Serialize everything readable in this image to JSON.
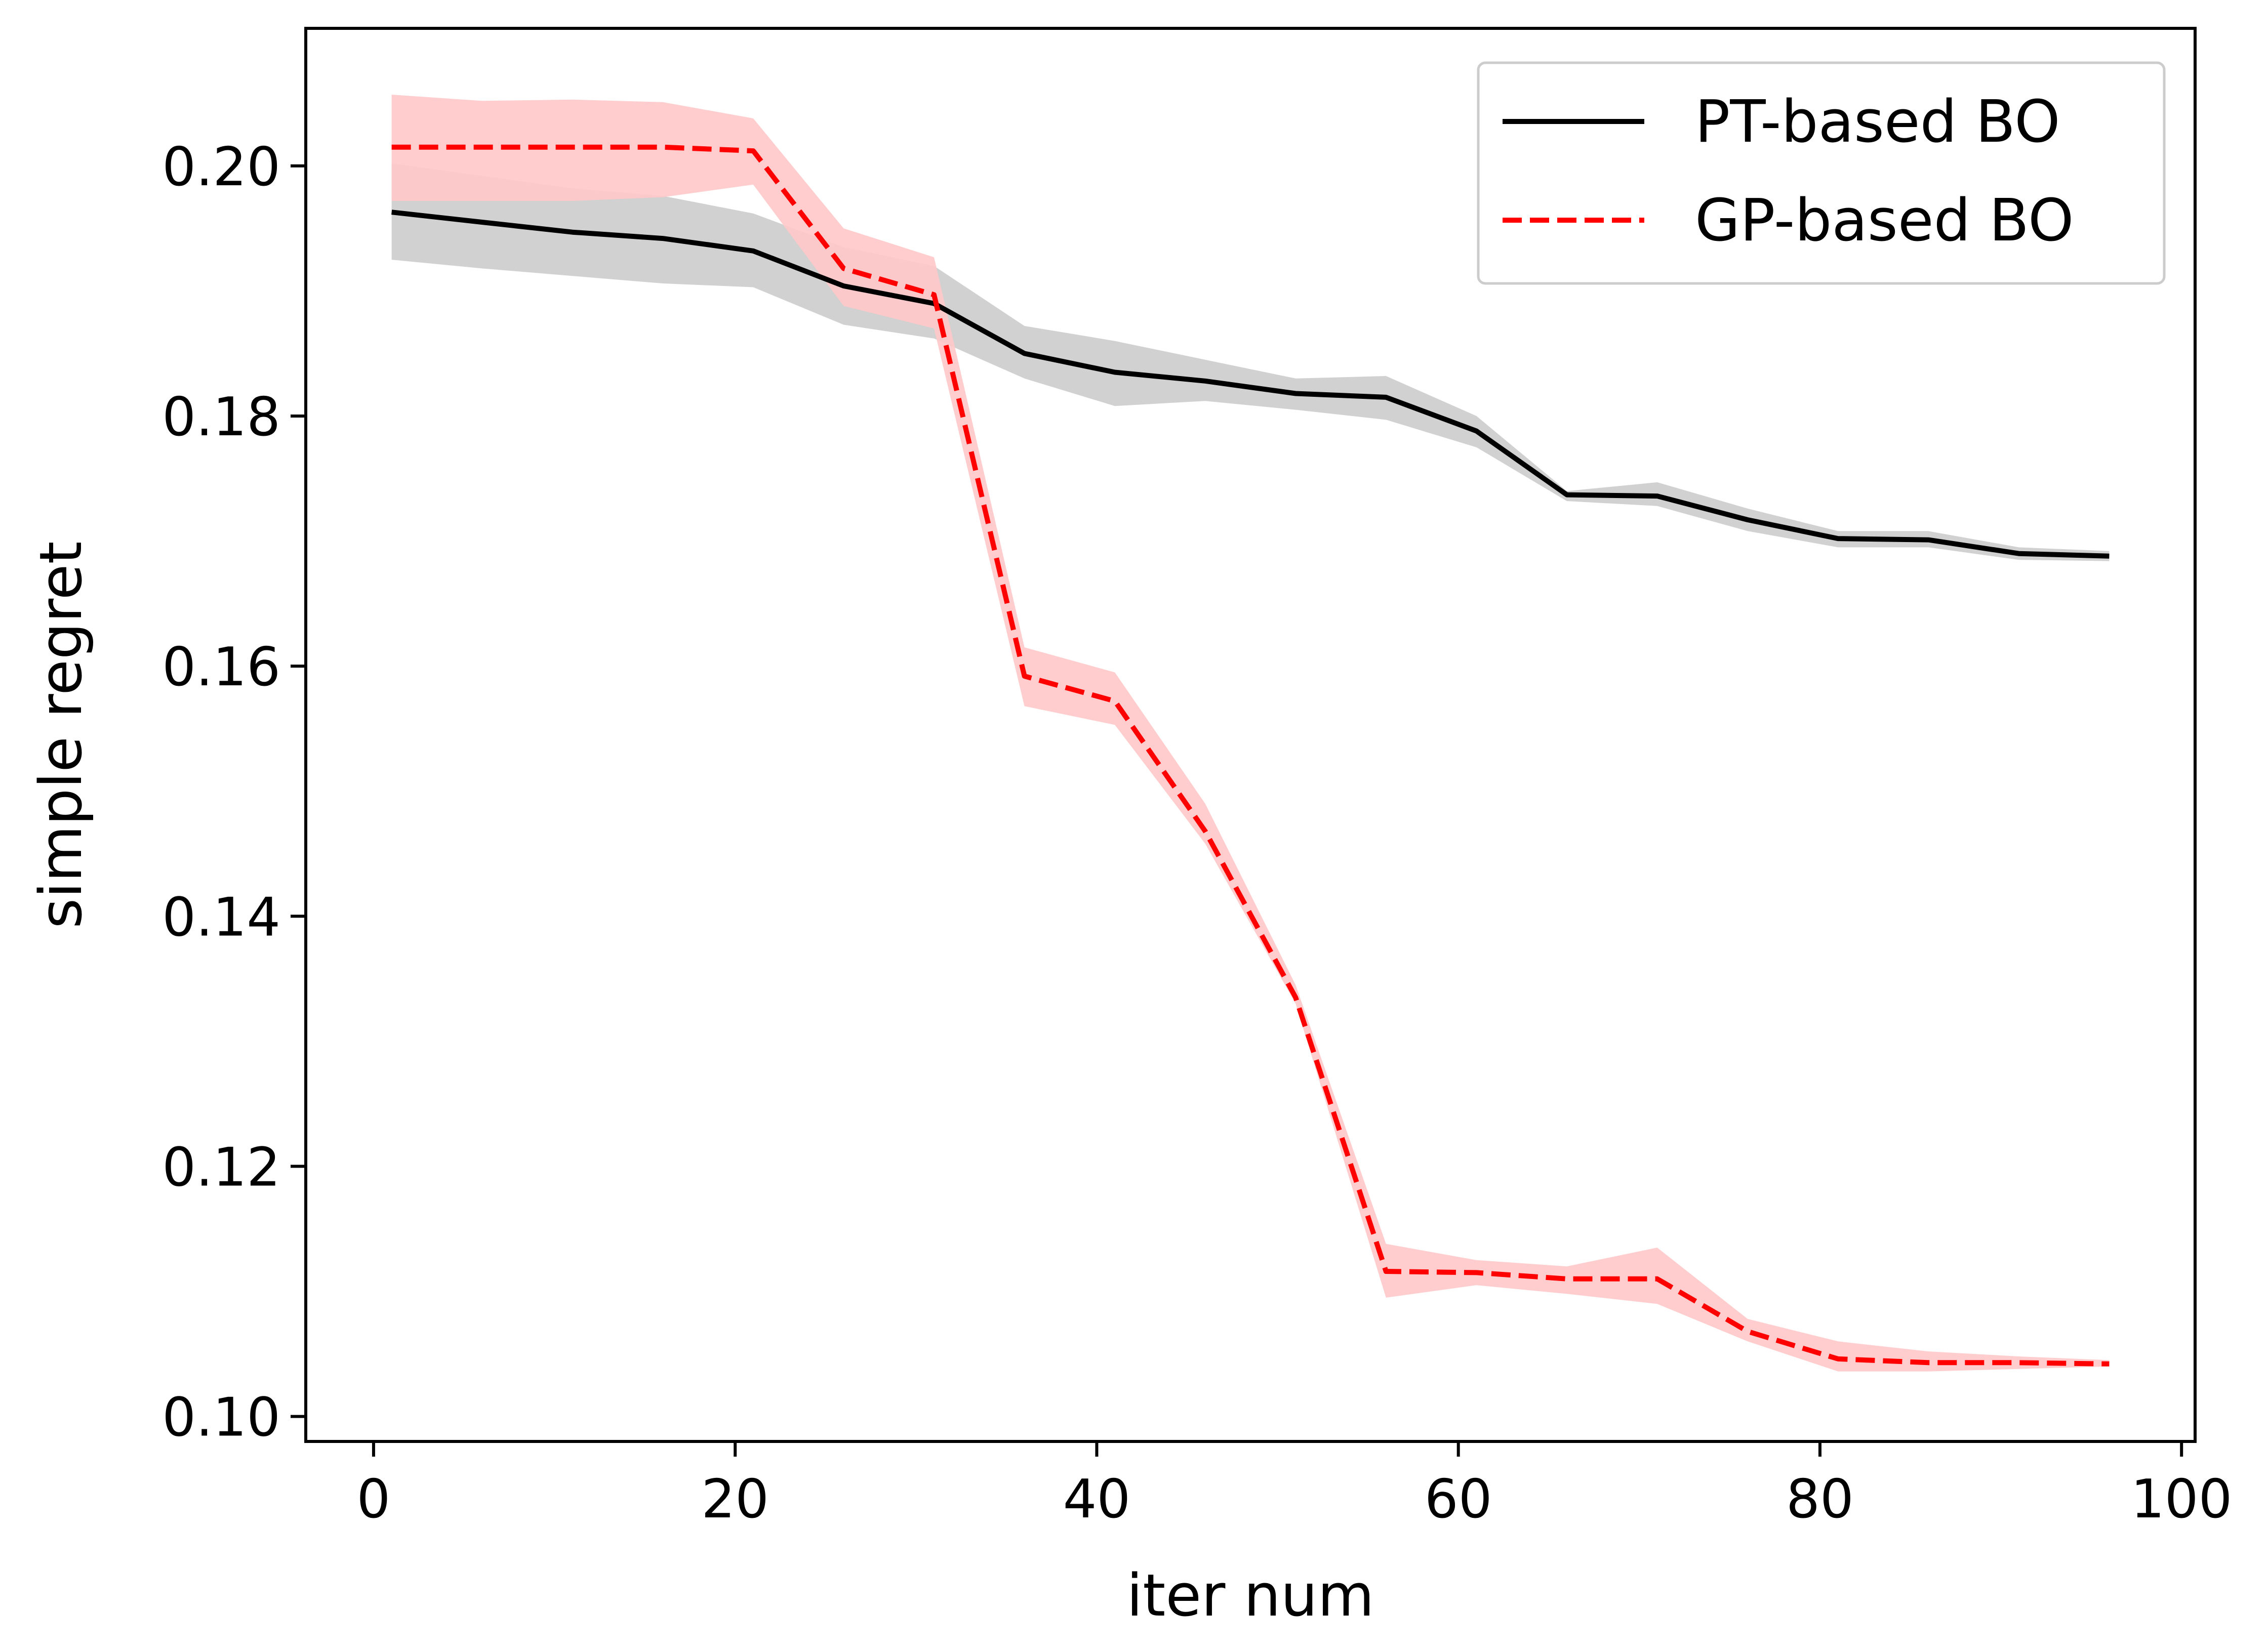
{
  "chart_data": {
    "type": "line",
    "title": "",
    "xlabel": "iter num",
    "ylabel": "simple regret",
    "xlim": [
      -3.75,
      100.75
    ],
    "ylim": [
      0.098,
      0.211
    ],
    "xticks": [
      0,
      20,
      40,
      60,
      80,
      100
    ],
    "xtick_labels": [
      "0",
      "20",
      "40",
      "60",
      "80",
      "100"
    ],
    "yticks": [
      0.1,
      0.12,
      0.14,
      0.16,
      0.18,
      0.2
    ],
    "ytick_labels": [
      "0.10",
      "0.12",
      "0.14",
      "0.16",
      "0.18",
      "0.20"
    ],
    "grid": false,
    "legend_position": "top-right",
    "x": [
      1,
      6,
      11,
      16,
      21,
      26,
      31,
      36,
      41,
      46,
      51,
      56,
      61,
      66,
      71,
      76,
      81,
      86,
      91,
      96
    ],
    "series": [
      {
        "name": "PT-based BO",
        "color": "#000000",
        "band_color": "#cccccc",
        "line_style": "solid",
        "values": [
          0.1963,
          0.1955,
          0.1947,
          0.1942,
          0.1932,
          0.1904,
          0.189,
          0.185,
          0.1835,
          0.1828,
          0.1818,
          0.1815,
          0.1788,
          0.1737,
          0.1736,
          0.1717,
          0.1702,
          0.1701,
          0.169,
          0.1688
        ],
        "lower": [
          0.1925,
          0.1918,
          0.1912,
          0.1906,
          0.1903,
          0.1873,
          0.1862,
          0.183,
          0.1808,
          0.1812,
          0.1805,
          0.1797,
          0.1775,
          0.1732,
          0.1728,
          0.1708,
          0.1695,
          0.1695,
          0.1685,
          0.1684
        ],
        "upper": [
          0.2002,
          0.1992,
          0.1982,
          0.1976,
          0.1962,
          0.1935,
          0.192,
          0.1872,
          0.186,
          0.1845,
          0.183,
          0.1832,
          0.18,
          0.174,
          0.1747,
          0.1726,
          0.1708,
          0.1708,
          0.1695,
          0.1692
        ]
      },
      {
        "name": "GP-based BO",
        "color": "#ff0000",
        "band_color": "#ffc8c8",
        "line_style": "dashed",
        "values": [
          0.2015,
          0.2015,
          0.2015,
          0.2015,
          0.2012,
          0.1918,
          0.1897,
          0.1592,
          0.1572,
          0.1468,
          0.1335,
          0.1116,
          0.1115,
          0.111,
          0.111,
          0.1068,
          0.1046,
          0.1043,
          0.1043,
          0.1042
        ],
        "lower": [
          0.1972,
          0.1972,
          0.1972,
          0.1975,
          0.1985,
          0.1888,
          0.187,
          0.1568,
          0.1553,
          0.1458,
          0.133,
          0.1095,
          0.1105,
          0.1098,
          0.109,
          0.106,
          0.1036,
          0.1036,
          0.1038,
          0.104
        ],
        "upper": [
          0.2057,
          0.2052,
          0.2053,
          0.2051,
          0.2038,
          0.195,
          0.1927,
          0.1615,
          0.1595,
          0.149,
          0.1345,
          0.1138,
          0.1125,
          0.112,
          0.1135,
          0.1078,
          0.106,
          0.1052,
          0.1048,
          0.1045
        ]
      }
    ]
  }
}
